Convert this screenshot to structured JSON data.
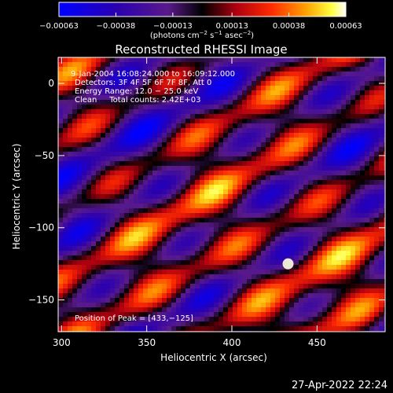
{
  "chart_data": {
    "type": "heatmap",
    "title": "Reconstructed RHESSI Image",
    "xlabel": "Heliocentric X (arcsec)",
    "ylabel": "Heliocentric Y (arcsec)",
    "xlim": [
      298,
      490
    ],
    "ylim": [
      -172,
      18
    ],
    "x_ticks": [
      300,
      350,
      400,
      450
    ],
    "y_ticks": [
      0,
      -50,
      -100,
      -150
    ],
    "x_tick_labels": [
      "300",
      "350",
      "400",
      "450"
    ],
    "y_tick_labels": [
      "0",
      "−50",
      "−100",
      "−150"
    ],
    "colorbar": {
      "range": [
        -0.00063,
        0.00063
      ],
      "ticks": [
        -0.00063,
        -0.00038,
        -0.00013,
        0.00013,
        0.00038,
        0.00063
      ],
      "tick_labels": [
        "−0.00063",
        "−0.00038",
        "−0.00013",
        "0.00013",
        "0.00038",
        "0.00063"
      ],
      "unit_base": "(photons cm",
      "unit_exp1": "−2",
      "unit_mid1": " s",
      "unit_exp2": "−1",
      "unit_mid2": " asec",
      "unit_exp3": "−2",
      "unit_end": ")"
    },
    "annotations": {
      "line1": "9-Jan-2004 16:08:24.000 to 16:09:12.000",
      "line2": "Detectors: 3F 4F 5F 6F 7F 8F, Att 0",
      "line3": "Energy Range: 12.0 − 25.0 keV",
      "line4": "Clean     Total counts: 2.42E+03",
      "peak": "Position of Peak = [433,−125]"
    },
    "peak": [
      433,
      -125
    ],
    "footer": "27-Apr-2022 22:24",
    "colors": {
      "background": "#000000",
      "text": "#ffffff"
    }
  }
}
